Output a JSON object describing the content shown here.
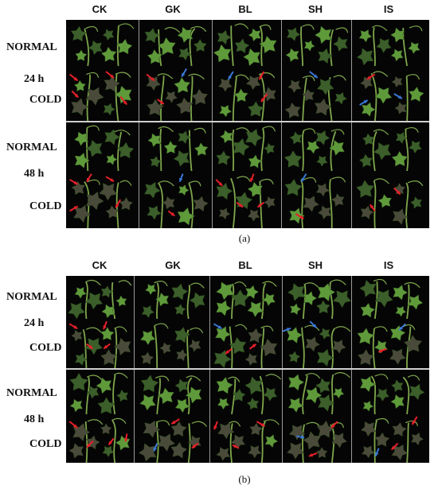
{
  "figure_a": {
    "columns": [
      "CK",
      "GK",
      "BL",
      "SH",
      "IS"
    ],
    "row_labels": {
      "top_normal": "NORMAL",
      "top_time": "24 h",
      "top_cold": "COLD",
      "bottom_normal": "NORMAL",
      "bottom_time": "48 h",
      "bottom_cold": "COLD"
    },
    "caption": "(a)"
  },
  "figure_b": {
    "columns": [
      "CK",
      "GK",
      "BL",
      "SH",
      "IS"
    ],
    "row_labels": {
      "top_normal": "NORMAL",
      "top_time": "24 h",
      "top_cold": "COLD",
      "bottom_normal": "NORMAL",
      "bottom_time": "48 h",
      "bottom_cold": "COLD"
    },
    "caption": "(b)"
  },
  "colors": {
    "background": "#000000",
    "leaf_green": "#5f9a3a",
    "leaf_dark": "#3b5e2a",
    "leaf_damaged": "#4a4a3a",
    "arrow_red": "#e8202a",
    "arrow_blue": "#3a78d8"
  }
}
